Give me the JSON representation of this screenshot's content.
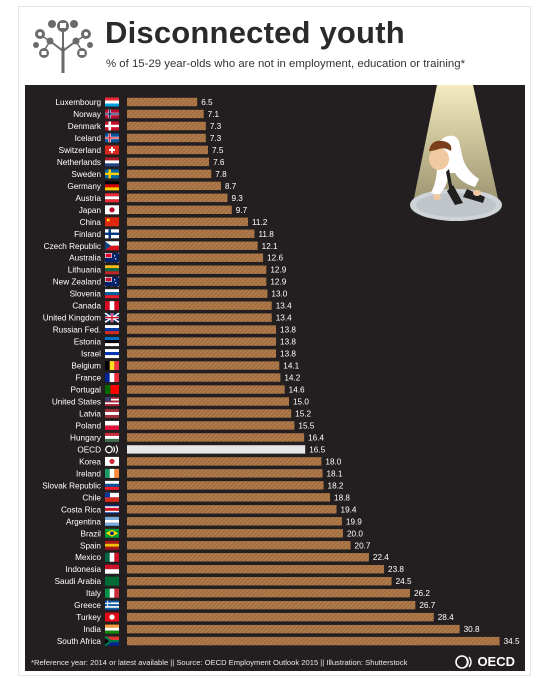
{
  "header": {
    "title": "Disconnected youth",
    "subtitle": "% of 15-29 year-olds who are not in employment, education or training*"
  },
  "footer": {
    "note": "*Reference year: 2014 or latest available || Source: OECD Employment Outlook 2015 || Illustration: Shutterstock",
    "brand": "OECD"
  },
  "colors": {
    "background": "#231f20",
    "bar": "#b07a4a",
    "bar_hatch": "#8a5c33",
    "highlight_bar": "#e6e6e6",
    "label": "#ffffff"
  },
  "chart_data": {
    "type": "bar",
    "orientation": "horizontal",
    "title": "Disconnected youth",
    "subtitle": "% of 15-29 year-olds who are not in employment, education or training*",
    "xlabel": "",
    "ylabel": "",
    "xlim": [
      0,
      36
    ],
    "grid": false,
    "highlight": "OECD",
    "categories": [
      "Luxembourg",
      "Norway",
      "Denmark",
      "Iceland",
      "Switzerland",
      "Netherlands",
      "Sweden",
      "Germany",
      "Austria",
      "Japan",
      "China",
      "Finland",
      "Czech Republic",
      "Australia",
      "Lithuania",
      "New Zealand",
      "Slovenia",
      "Canada",
      "United Kingdom",
      "Russian Fed.",
      "Estonia",
      "Israel",
      "Belgium",
      "France",
      "Portugal",
      "United States",
      "Latvia",
      "Poland",
      "Hungary",
      "OECD",
      "Korea",
      "Ireland",
      "Slovak Republic",
      "Chile",
      "Costa Rica",
      "Argentina",
      "Brazil",
      "Spain",
      "Mexico",
      "Indonesia",
      "Saudi Arabia",
      "Italy",
      "Greece",
      "Turkey",
      "India",
      "South Africa"
    ],
    "values": [
      6.5,
      7.1,
      7.3,
      7.3,
      7.5,
      7.6,
      7.8,
      8.7,
      9.3,
      9.7,
      11.2,
      11.8,
      12.1,
      12.6,
      12.9,
      12.9,
      13.0,
      13.4,
      13.4,
      13.8,
      13.8,
      13.8,
      14.1,
      14.2,
      14.6,
      15.0,
      15.2,
      15.5,
      16.4,
      16.5,
      18.0,
      18.1,
      18.2,
      18.8,
      19.4,
      19.9,
      20.0,
      20.7,
      22.4,
      23.8,
      24.5,
      26.2,
      26.7,
      28.4,
      30.8,
      34.5
    ],
    "value_labels": [
      "6.5",
      "7.1",
      "7.3",
      "7.3",
      "7.5",
      "7.6",
      "7.8",
      "8.7",
      "9.3",
      "9.7",
      "11.2",
      "11.8",
      "12.1",
      "12.6",
      "12.9",
      "12.9",
      "13.0",
      "13.4",
      "13.4",
      "13.8",
      "13.8",
      "13.8",
      "14.1",
      "14.2",
      "14.6",
      "15.0",
      "15.2",
      "15.5",
      "16.4",
      "16.5",
      "18.0",
      "18.1",
      "18.2",
      "18.8",
      "19.4",
      "19.9",
      "20.0",
      "20.7",
      "22.4",
      "23.8",
      "24.5",
      "26.2",
      "26.7",
      "28.4",
      "30.8",
      "34.5"
    ],
    "flags": [
      "luxembourg-flag",
      "norway-flag",
      "denmark-flag",
      "iceland-flag",
      "switzerland-flag",
      "netherlands-flag",
      "sweden-flag",
      "germany-flag",
      "austria-flag",
      "japan-flag",
      "china-flag",
      "finland-flag",
      "czech-republic-flag",
      "australia-flag",
      "lithuania-flag",
      "new-zealand-flag",
      "slovenia-flag",
      "canada-flag",
      "united-kingdom-flag",
      "russia-flag",
      "estonia-flag",
      "israel-flag",
      "belgium-flag",
      "france-flag",
      "portugal-flag",
      "united-states-flag",
      "latvia-flag",
      "poland-flag",
      "hungary-flag",
      "oecd-logo",
      "korea-flag",
      "ireland-flag",
      "slovak-republic-flag",
      "chile-flag",
      "costa-rica-flag",
      "argentina-flag",
      "brazil-flag",
      "spain-flag",
      "mexico-flag",
      "indonesia-flag",
      "saudi-arabia-flag",
      "italy-flag",
      "greece-flag",
      "turkey-flag",
      "india-flag",
      "south-africa-flag"
    ]
  },
  "illustration": "sad-youth-in-spotlight"
}
